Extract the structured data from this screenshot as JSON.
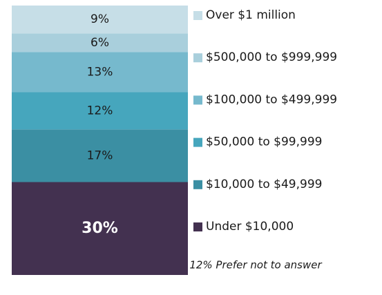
{
  "chart_data": {
    "type": "stacked_bar",
    "series": [
      {
        "name": "Under $10,000",
        "color": "#433150",
        "values": [
          30
        ],
        "value_labels": [
          "30%"
        ]
      },
      {
        "name": "$10,000 to $49,999",
        "color": "#3b8fa3",
        "values": [
          17
        ],
        "value_labels": [
          "17%"
        ]
      },
      {
        "name": "$50,000 to $99,999",
        "color": "#46a6bd",
        "values": [
          12
        ],
        "value_labels": [
          "12%"
        ]
      },
      {
        "name": "$100,000 to $499,999",
        "color": "#76b9cd",
        "values": [
          13
        ],
        "value_labels": [
          "13%"
        ]
      },
      {
        "name": "$500,000 to $999,999",
        "color": "#a9cfdc",
        "values": [
          6
        ],
        "value_labels": [
          "6%"
        ]
      },
      {
        "name": "Over $1 million",
        "color": "#c6dee7",
        "values": [
          9
        ],
        "value_labels": [
          "9%"
        ]
      }
    ],
    "annotation": "12% Prefer not to answer"
  }
}
